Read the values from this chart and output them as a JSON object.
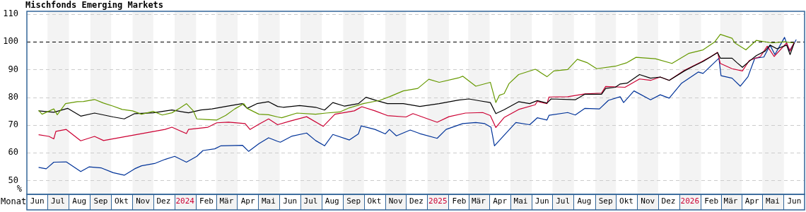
{
  "chart_data": {
    "type": "line",
    "title": "Mischfonds Emerging Markets",
    "xlabel": "Monat",
    "ylabel": "%",
    "xlim": [
      "2023-06-01",
      "2026-07-01"
    ],
    "xticks": [
      {
        "value": "2023-06-16",
        "label": "Jun"
      },
      {
        "value": "2023-07-16",
        "label": "Jul"
      },
      {
        "value": "2023-08-16",
        "label": "Aug"
      },
      {
        "value": "2023-09-16",
        "label": "Sep"
      },
      {
        "value": "2023-10-16",
        "label": "Okt"
      },
      {
        "value": "2023-11-16",
        "label": "Nov"
      },
      {
        "value": "2023-12-16",
        "label": "Dez"
      },
      {
        "value": "2024-01-16",
        "label": "2024"
      },
      {
        "value": "2024-02-16",
        "label": "Feb"
      },
      {
        "value": "2024-03-16",
        "label": "Mär"
      },
      {
        "value": "2024-04-16",
        "label": "Apr"
      },
      {
        "value": "2024-05-16",
        "label": "Mai"
      },
      {
        "value": "2024-06-16",
        "label": "Jun"
      },
      {
        "value": "2024-07-16",
        "label": "Jul"
      },
      {
        "value": "2024-08-16",
        "label": "Aug"
      },
      {
        "value": "2024-09-16",
        "label": "Sep"
      },
      {
        "value": "2024-10-16",
        "label": "Okt"
      },
      {
        "value": "2024-11-16",
        "label": "Nov"
      },
      {
        "value": "2024-12-16",
        "label": "Dez"
      },
      {
        "value": "2025-01-16",
        "label": "2025"
      },
      {
        "value": "2025-02-16",
        "label": "Feb"
      },
      {
        "value": "2025-03-16",
        "label": "Mär"
      },
      {
        "value": "2025-04-16",
        "label": "Apr"
      },
      {
        "value": "2025-05-16",
        "label": "Mai"
      },
      {
        "value": "2025-06-16",
        "label": "Jun"
      },
      {
        "value": "2025-07-16",
        "label": "Jul"
      },
      {
        "value": "2025-08-16",
        "label": "Aug"
      },
      {
        "value": "2025-09-16",
        "label": "Sep"
      },
      {
        "value": "2025-10-16",
        "label": "Okt"
      },
      {
        "value": "2025-11-16",
        "label": "Nov"
      },
      {
        "value": "2025-12-16",
        "label": "Dez"
      },
      {
        "value": "2026-01-16",
        "label": "2026"
      },
      {
        "value": "2026-02-16",
        "label": "Feb"
      },
      {
        "value": "2026-03-16",
        "label": "Mär"
      },
      {
        "value": "2026-04-16",
        "label": "Apr"
      },
      {
        "value": "2026-05-16",
        "label": "Mai"
      },
      {
        "value": "2026-06-16",
        "label": "Jun"
      }
    ],
    "ylim": [
      45,
      111
    ],
    "yticks": [
      50,
      60,
      70,
      80,
      90,
      100,
      110
    ],
    "grid": "y",
    "ref_lines": [
      {
        "axis": "y",
        "value": 100,
        "color": "#000000",
        "line_style": "dashed"
      }
    ],
    "bands": [
      {
        "axis": "x",
        "from": "2023-07-01",
        "to": "2023-08-01",
        "color": "#f3f3f3"
      },
      {
        "axis": "x",
        "from": "2023-09-01",
        "to": "2023-10-01",
        "color": "#f3f3f3"
      },
      {
        "axis": "x",
        "from": "2023-11-01",
        "to": "2023-12-01",
        "color": "#f3f3f3"
      },
      {
        "axis": "x",
        "from": "2024-01-01",
        "to": "2024-02-01",
        "color": "#f3f3f3"
      },
      {
        "axis": "x",
        "from": "2024-03-01",
        "to": "2024-04-01",
        "color": "#f3f3f3"
      },
      {
        "axis": "x",
        "from": "2024-05-01",
        "to": "2024-06-01",
        "color": "#f3f3f3"
      },
      {
        "axis": "x",
        "from": "2024-07-01",
        "to": "2024-08-01",
        "color": "#f3f3f3"
      },
      {
        "axis": "x",
        "from": "2024-09-01",
        "to": "2024-10-01",
        "color": "#f3f3f3"
      },
      {
        "axis": "x",
        "from": "2024-11-01",
        "to": "2024-12-01",
        "color": "#f3f3f3"
      },
      {
        "axis": "x",
        "from": "2025-01-01",
        "to": "2025-02-01",
        "color": "#f3f3f3"
      },
      {
        "axis": "x",
        "from": "2025-03-01",
        "to": "2025-04-01",
        "color": "#f3f3f3"
      },
      {
        "axis": "x",
        "from": "2025-05-01",
        "to": "2025-06-01",
        "color": "#f3f3f3"
      },
      {
        "axis": "x",
        "from": "2025-07-01",
        "to": "2025-08-01",
        "color": "#f3f3f3"
      },
      {
        "axis": "x",
        "from": "2025-09-01",
        "to": "2025-10-01",
        "color": "#f3f3f3"
      },
      {
        "axis": "x",
        "from": "2025-11-01",
        "to": "2025-12-01",
        "color": "#f3f3f3"
      },
      {
        "axis": "x",
        "from": "2026-01-01",
        "to": "2026-02-01",
        "color": "#f3f3f3"
      },
      {
        "axis": "x",
        "from": "2026-03-01",
        "to": "2026-04-01",
        "color": "#f3f3f3"
      },
      {
        "axis": "x",
        "from": "2026-05-01",
        "to": "2026-06-01",
        "color": "#f3f3f3"
      }
    ],
    "series": [
      {
        "color": "#669900",
        "x": [
          "2023-06-18",
          "2023-06-23",
          "2023-07-10",
          "2023-07-15",
          "2023-07-27",
          "2023-08-13",
          "2023-08-22",
          "2023-09-07",
          "2023-09-20",
          "2023-10-04",
          "2023-10-17",
          "2023-11-01",
          "2023-11-14",
          "2023-12-01",
          "2023-12-14",
          "2023-12-28",
          "2024-01-08",
          "2024-01-18",
          "2024-01-28",
          "2024-02-02",
          "2024-02-15",
          "2024-03-02",
          "2024-03-15",
          "2024-03-28",
          "2024-04-10",
          "2024-04-15",
          "2024-05-02",
          "2024-05-16",
          "2024-05-29",
          "2024-06-04",
          "2024-06-26",
          "2024-07-23",
          "2024-08-07",
          "2024-08-27",
          "2024-09-10",
          "2024-09-30",
          "2024-10-24",
          "2024-11-07",
          "2024-11-27",
          "2024-12-18",
          "2025-01-03",
          "2025-01-18",
          "2025-02-15",
          "2025-02-21",
          "2025-03-12",
          "2025-04-02",
          "2025-04-10",
          "2025-04-15",
          "2025-04-22",
          "2025-04-29",
          "2025-05-13",
          "2025-06-06",
          "2025-06-09",
          "2025-06-23",
          "2025-07-03",
          "2025-07-23",
          "2025-08-06",
          "2025-08-20",
          "2025-09-03",
          "2025-09-30",
          "2025-10-17",
          "2025-10-30",
          "2025-11-27",
          "2025-12-21",
          "2026-01-14",
          "2026-02-04",
          "2026-02-21",
          "2026-03-01",
          "2026-03-18",
          "2026-03-22",
          "2026-04-07",
          "2026-04-22",
          "2026-05-15",
          "2026-06-02",
          "2026-06-15"
        ],
        "values": [
          75.3,
          73.9,
          75.8,
          73.7,
          77.7,
          78.4,
          78.5,
          79.2,
          77.9,
          76.8,
          75.6,
          75.1,
          73.9,
          74.9,
          73.6,
          74.4,
          76,
          77.7,
          75.1,
          72.2,
          72,
          71.8,
          73.5,
          75.8,
          77.7,
          76,
          73.9,
          73.7,
          72.9,
          72.6,
          74.3,
          73.9,
          74.3,
          74.7,
          76.2,
          77.7,
          78.9,
          80.2,
          82.3,
          83.2,
          86.5,
          85.4,
          87,
          87.6,
          84,
          85.4,
          78.1,
          80.7,
          81.3,
          84.9,
          88.2,
          90.1,
          89.7,
          87.4,
          89.5,
          90,
          93.7,
          92.5,
          90.3,
          91.2,
          92.5,
          94.4,
          93.9,
          92.2,
          95.8,
          97.1,
          100,
          102.7,
          101.3,
          99.6,
          97.1,
          100.5,
          99.6,
          100,
          99.6
        ]
      },
      {
        "color": "#000000",
        "x": [
          "2023-06-18",
          "2023-07-10",
          "2023-07-30",
          "2023-08-18",
          "2023-09-07",
          "2023-10-04",
          "2023-10-20",
          "2023-11-04",
          "2023-12-01",
          "2023-12-28",
          "2024-01-21",
          "2024-02-08",
          "2024-02-24",
          "2024-03-15",
          "2024-04-08",
          "2024-04-15",
          "2024-04-29",
          "2024-05-16",
          "2024-05-29",
          "2024-06-06",
          "2024-06-30",
          "2024-07-23",
          "2024-08-05",
          "2024-08-17",
          "2024-09-03",
          "2024-09-23",
          "2024-10-04",
          "2024-10-17",
          "2024-11-04",
          "2024-11-27",
          "2024-12-21",
          "2025-01-18",
          "2025-02-15",
          "2025-03-02",
          "2025-03-18",
          "2025-04-02",
          "2025-04-10",
          "2025-04-22",
          "2025-05-13",
          "2025-05-29",
          "2025-06-09",
          "2025-06-23",
          "2025-06-29",
          "2025-08-03",
          "2025-08-17",
          "2025-09-10",
          "2025-09-16",
          "2025-09-30",
          "2025-10-07",
          "2025-10-17",
          "2025-11-04",
          "2025-11-20",
          "2025-12-04",
          "2025-12-17",
          "2026-01-08",
          "2026-01-21",
          "2026-02-04",
          "2026-02-25",
          "2026-03-01",
          "2026-03-18",
          "2026-03-25",
          "2026-04-02",
          "2026-04-12",
          "2026-04-22",
          "2026-05-05",
          "2026-05-12",
          "2026-05-22",
          "2026-06-05",
          "2026-06-10",
          "2026-06-16"
        ],
        "values": [
          75.1,
          74.6,
          76,
          73.2,
          74.3,
          72.9,
          72.2,
          74.1,
          74.4,
          75.4,
          74.4,
          75.4,
          75.8,
          76.7,
          77.7,
          76,
          77.7,
          78.4,
          76.7,
          76.4,
          77,
          76.4,
          75.4,
          78.1,
          76.8,
          77.7,
          80,
          79,
          77.7,
          77.7,
          76.7,
          77.7,
          79,
          79.4,
          78.7,
          78.1,
          74.1,
          75.5,
          78.4,
          77.7,
          78.8,
          77.9,
          79.4,
          79.1,
          81.1,
          81.1,
          83.2,
          83.6,
          84.8,
          85.1,
          88.2,
          86.9,
          87.3,
          86.1,
          89.5,
          91.2,
          92.9,
          96.1,
          94.1,
          94.1,
          92.5,
          90.8,
          93,
          95,
          96.7,
          98.8,
          97.5,
          98.8,
          95.4,
          99.6
        ]
      },
      {
        "color": "#cc0033",
        "x": [
          "2023-06-18",
          "2023-07-03",
          "2023-07-10",
          "2023-07-13",
          "2023-07-28",
          "2023-08-18",
          "2023-09-07",
          "2023-09-20",
          "2023-12-18",
          "2023-12-28",
          "2024-01-08",
          "2024-01-18",
          "2024-01-21",
          "2024-02-18",
          "2024-03-02",
          "2024-03-19",
          "2024-04-12",
          "2024-04-19",
          "2024-05-02",
          "2024-05-16",
          "2024-05-29",
          "2024-06-16",
          "2024-07-10",
          "2024-08-03",
          "2024-08-20",
          "2024-09-17",
          "2024-09-28",
          "2024-10-17",
          "2024-11-04",
          "2024-12-01",
          "2024-12-11",
          "2025-01-15",
          "2025-02-01",
          "2025-02-25",
          "2025-03-22",
          "2025-04-02",
          "2025-04-10",
          "2025-04-22",
          "2025-05-13",
          "2025-06-06",
          "2025-06-09",
          "2025-06-23",
          "2025-06-26",
          "2025-07-23",
          "2025-08-17",
          "2025-09-10",
          "2025-09-16",
          "2025-10-14",
          "2025-11-04",
          "2025-11-20",
          "2025-12-04",
          "2025-12-17",
          "2026-01-08",
          "2026-02-01",
          "2026-02-15",
          "2026-02-25",
          "2026-03-01",
          "2026-03-18",
          "2026-04-02",
          "2026-04-12",
          "2026-04-28",
          "2026-05-08",
          "2026-05-18",
          "2026-06-05",
          "2026-06-10",
          "2026-06-16"
        ],
        "values": [
          66.5,
          65.9,
          65,
          67.7,
          68.4,
          64.3,
          65.9,
          64.4,
          68.4,
          69.2,
          68,
          66.9,
          68.4,
          69.2,
          70.8,
          71,
          70.5,
          68.4,
          70.3,
          72.2,
          70.1,
          71.4,
          73,
          69.5,
          73.9,
          75.1,
          76.6,
          75.1,
          73.4,
          72.9,
          74.1,
          71,
          73,
          74.3,
          74.5,
          73.4,
          69.1,
          72.7,
          75.6,
          77.3,
          78.5,
          77.7,
          80.1,
          80.2,
          81.2,
          81.5,
          83.9,
          83.6,
          86.6,
          86.1,
          87.3,
          86.1,
          89.7,
          92.7,
          94.6,
          96.2,
          92.2,
          90.3,
          89.5,
          93.3,
          94.7,
          98.4,
          94.7,
          99.6,
          96.7,
          99.8
        ]
      },
      {
        "color": "#003399",
        "x": [
          "2023-06-18",
          "2023-06-29",
          "2023-07-10",
          "2023-07-28",
          "2023-08-18",
          "2023-08-30",
          "2023-09-17",
          "2023-10-04",
          "2023-10-20",
          "2023-11-04",
          "2023-11-14",
          "2023-12-04",
          "2023-12-18",
          "2024-01-01",
          "2024-01-18",
          "2024-02-02",
          "2024-02-11",
          "2024-02-28",
          "2024-03-08",
          "2024-04-08",
          "2024-04-17",
          "2024-05-02",
          "2024-05-16",
          "2024-05-29",
          "2024-06-02",
          "2024-06-19",
          "2024-07-10",
          "2024-07-23",
          "2024-08-05",
          "2024-08-17",
          "2024-09-10",
          "2024-09-23",
          "2024-09-27",
          "2024-10-17",
          "2024-11-01",
          "2024-11-07",
          "2024-11-17",
          "2024-12-07",
          "2024-12-21",
          "2025-01-15",
          "2025-01-28",
          "2025-02-21",
          "2025-03-12",
          "2025-03-25",
          "2025-04-03",
          "2025-04-08",
          "2025-04-22",
          "2025-05-09",
          "2025-05-29",
          "2025-06-09",
          "2025-06-23",
          "2025-06-26",
          "2025-07-23",
          "2025-08-03",
          "2025-08-17",
          "2025-09-07",
          "2025-09-20",
          "2025-10-07",
          "2025-10-12",
          "2025-10-27",
          "2025-11-20",
          "2025-12-04",
          "2025-12-17",
          "2026-01-04",
          "2026-01-28",
          "2026-02-04",
          "2026-02-27",
          "2026-03-02",
          "2026-03-18",
          "2026-03-30",
          "2026-04-10",
          "2026-04-20",
          "2026-05-03",
          "2026-05-12",
          "2026-05-19",
          "2026-06-02",
          "2026-06-09",
          "2026-06-19"
        ],
        "values": [
          54.7,
          54.2,
          56.6,
          56.7,
          53.2,
          54.9,
          54.5,
          52.8,
          51.9,
          54.2,
          55.3,
          56.2,
          57.6,
          58.7,
          56.6,
          58.7,
          60.8,
          61.4,
          62.5,
          62.7,
          60.5,
          63.3,
          65.4,
          64.1,
          63.8,
          66,
          67.1,
          64.4,
          62.5,
          66.6,
          64.6,
          66.8,
          69.7,
          68.4,
          66.8,
          68.4,
          66.1,
          68.2,
          66.9,
          65.2,
          68.4,
          70.5,
          70.9,
          70.5,
          69.2,
          62.5,
          66.3,
          70.9,
          70.1,
          72.6,
          71.8,
          73.5,
          74.5,
          73.6,
          76,
          75.8,
          78.9,
          80.2,
          78.1,
          82.3,
          79.1,
          80.9,
          79.7,
          85.1,
          89.1,
          88.6,
          94.1,
          87.8,
          86.9,
          84,
          87.4,
          94.1,
          94.5,
          98.8,
          95.4,
          101.6,
          96.7,
          100.8
        ]
      }
    ]
  }
}
